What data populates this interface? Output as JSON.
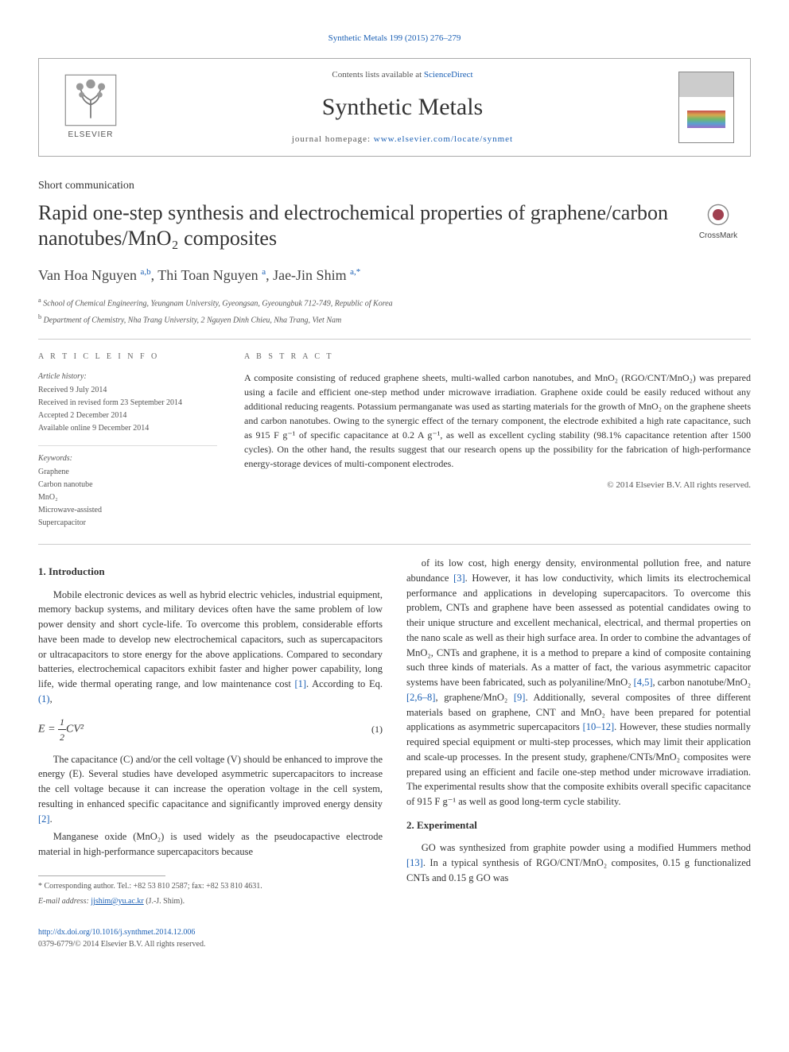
{
  "journal_link_top": "Synthetic Metals 199 (2015) 276–279",
  "header": {
    "publisher": "ELSEVIER",
    "contents_prefix": "Contents lists available at ",
    "contents_link": "ScienceDirect",
    "journal_title": "Synthetic Metals",
    "homepage_prefix": "journal homepage: ",
    "homepage_link": "www.elsevier.com/locate/synmet"
  },
  "article_type": "Short communication",
  "article_title": "Rapid one-step synthesis and electrochemical properties of graphene/carbon nanotubes/MnO₂ composites",
  "crossmark_label": "CrossMark",
  "authors_html": "Van Hoa Nguyen <sup>a,b</sup>, Thi Toan Nguyen <sup>a</sup>, Jae-Jin Shim <sup>a,*</sup>",
  "affiliations": [
    {
      "sup": "a",
      "text": "School of Chemical Engineering, Yeungnam University, Gyeongsan, Gyeoungbuk 712-749, Republic of Korea"
    },
    {
      "sup": "b",
      "text": "Department of Chemistry, Nha Trang University, 2 Nguyen Dinh Chieu, Nha Trang, Viet Nam"
    }
  ],
  "info": {
    "heading": "A R T I C L E  I N F O",
    "history_label": "Article history:",
    "history": [
      "Received 9 July 2014",
      "Received in revised form 23 September 2014",
      "Accepted 2 December 2014",
      "Available online 9 December 2014"
    ],
    "keywords_label": "Keywords:",
    "keywords": [
      "Graphene",
      "Carbon nanotube",
      "MnO₂",
      "Microwave-assisted",
      "Supercapacitor"
    ]
  },
  "abstract": {
    "heading": "A B S T R A C T",
    "text": "A composite consisting of reduced graphene sheets, multi-walled carbon nanotubes, and MnO₂ (RGO/CNT/MnO₂) was prepared using a facile and efficient one-step method under microwave irradiation. Graphene oxide could be easily reduced without any additional reducing reagents. Potassium permanganate was used as starting materials for the growth of MnO₂ on the graphene sheets and carbon nanotubes. Owing to the synergic effect of the ternary component, the electrode exhibited a high rate capacitance, such as 915 F g⁻¹ of specific capacitance at 0.2 A g⁻¹, as well as excellent cycling stability (98.1% capacitance retention after 1500 cycles). On the other hand, the results suggest that our research opens up the possibility for the fabrication of high-performance energy-storage devices of multi-component electrodes.",
    "copyright": "© 2014 Elsevier B.V. All rights reserved."
  },
  "sections": {
    "intro_heading": "1. Introduction",
    "intro_p1": "Mobile electronic devices as well as hybrid electric vehicles, industrial equipment, memory backup systems, and military devices often have the same problem of low power density and short cycle-life. To overcome this problem, considerable efforts have been made to develop new electrochemical capacitors, such as supercapacitors or ultracapacitors to store energy for the above applications. Compared to secondary batteries, electrochemical capacitors exhibit faster and higher power capability, long life, wide thermal operating range, and low maintenance cost ",
    "intro_p1_tail": ". According to Eq. ",
    "equation": {
      "num": "1",
      "den": "2",
      "rhs": "CV²",
      "lhs": "E",
      "number": "(1)"
    },
    "intro_p2_a": "The capacitance (C) and/or the cell voltage (V) should be enhanced to improve the energy (E). Several studies have developed asymmetric supercapacitors to increase the cell voltage because it can increase the operation voltage in the cell system, resulting in enhanced specific capacitance and significantly improved energy density ",
    "intro_p3_a": "Manganese oxide (MnO₂) is used widely as the pseudocapactive electrode material in high-performance supercapacitors because",
    "intro_p3_b": "of its low cost, high energy density, environmental pollution free, and nature abundance ",
    "intro_p3_c": ". However, it has low conductivity, which limits its electrochemical performance and applications in developing supercapacitors. To overcome this problem, CNTs and graphene have been assessed as potential candidates owing to their unique structure and excellent mechanical, electrical, and thermal properties on the nano scale as well as their high surface area. In order to combine the advantages of MnO₂, CNTs and graphene, it is a method to prepare a kind of composite containing such three kinds of materials. As a matter of fact, the various asymmetric capacitor systems have been fabricated, such as polyaniline/MnO₂ ",
    "intro_p3_d": ", carbon nanotube/MnO₂ ",
    "intro_p3_e": ", graphene/MnO₂ ",
    "intro_p3_f": ". Additionally, several composites of three different materials based on graphene, CNT and MnO₂ have been prepared for potential applications as asymmetric supercapacitors ",
    "intro_p3_g": ". However, these studies normally required special equipment or multi-step processes, which may limit their application and scale-up processes. In the present study, graphene/CNTs/MnO₂ composites were prepared using an efficient and facile one-step method under microwave irradiation. The experimental results show that the composite exhibits overall specific capacitance of 915 F g⁻¹ as well as good long-term cycle stability.",
    "exp_heading": "2. Experimental",
    "exp_p1_a": "GO was synthesized from graphite powder using a modified Hummers method ",
    "exp_p1_b": ". In a typical synthesis of RGO/CNT/MnO₂ composites, 0.15 g functionalized CNTs and 0.15 g GO was"
  },
  "refs": {
    "r1": "[1]",
    "r2": "[2]",
    "r3": "[3]",
    "r45": "[4,5]",
    "r268": "[2,6–8]",
    "r9": "[9]",
    "r1012": "[10–12]",
    "r13": "[13]",
    "eq1": "(1)"
  },
  "footnote": {
    "corr": "* Corresponding author. Tel.: +82 53 810 2587; fax: +82 53 810 4631.",
    "email_label": "E-mail address: ",
    "email": "jjshim@yu.ac.kr",
    "email_tail": " (J.-J. Shim)."
  },
  "footer": {
    "doi": "http://dx.doi.org/10.1016/j.synthmet.2014.12.006",
    "issn": "0379-6779/© 2014 Elsevier B.V. All rights reserved."
  },
  "colors": {
    "link": "#1a5fb4",
    "text": "#333333",
    "muted": "#555555",
    "border": "#aaaaaa"
  },
  "typography": {
    "body_font": "Georgia, serif",
    "title_size_pt": 26,
    "journal_title_pt": 30,
    "body_pt": 12.5,
    "info_pt": 10
  }
}
